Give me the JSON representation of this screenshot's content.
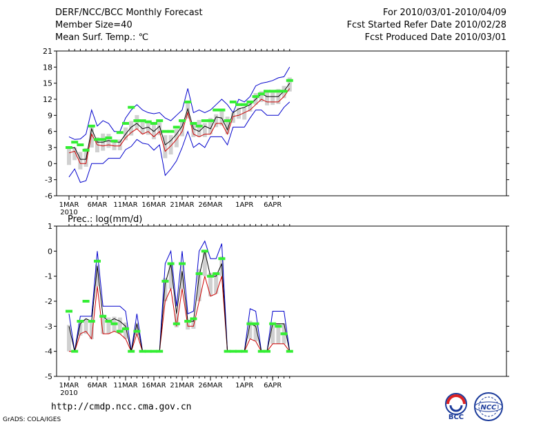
{
  "header": {
    "title": "DERF/NCC/BCC Monthly Forecast",
    "member": "Member Size=40",
    "variable1": "Mean Surf. Temp.: ℃",
    "period": "For 2010/03/01-2010/04/09",
    "started": "Fcst Started Refer Date 2010/02/28",
    "produced": "Fcst Produced Date 2010/03/01"
  },
  "footer": {
    "url": "http://cmdp.ncc.cma.gov.cn",
    "credit": "GrADS: COLA/IGES",
    "logo1": "BCC",
    "logo2": "NCC"
  },
  "colors": {
    "max": "#0000cc",
    "min": "#cc0000",
    "mean": "#000000",
    "box": "#d0d0d0",
    "obs": "#33ee33"
  },
  "chart_data": [
    {
      "type": "line",
      "title": "Mean Surf. Temp.: ℃",
      "xlabels": [
        "1MAR",
        "6MAR",
        "11MAR",
        "16MAR",
        "21MAR",
        "26MAR",
        "1APR",
        "6APR"
      ],
      "year_label": "2010",
      "ylim": [
        -6,
        21
      ],
      "yticks": [
        -6,
        -3,
        0,
        3,
        6,
        9,
        12,
        15,
        18,
        21
      ],
      "days": 40,
      "series": [
        {
          "name": "max",
          "values": [
            5,
            4.5,
            4.6,
            5.5,
            10,
            7,
            8,
            7.5,
            6,
            6,
            8.5,
            10,
            11,
            10,
            9.5,
            9.3,
            9.5,
            8.5,
            8,
            9,
            10,
            14,
            9.5,
            10,
            9.5,
            10,
            11,
            12,
            11,
            9.5,
            12,
            11.5,
            12.5,
            14.5,
            15,
            15.2,
            15.5,
            16,
            16.2,
            18
          ]
        },
        {
          "name": "mean",
          "values": [
            2.8,
            3,
            0.8,
            0.8,
            6.5,
            4,
            4,
            4.3,
            4,
            4,
            5.5,
            6.8,
            7.5,
            6.5,
            6.8,
            6,
            7,
            3.5,
            4.3,
            5.5,
            7,
            10.2,
            6.5,
            6,
            7,
            6.5,
            8.7,
            8.5,
            6.3,
            9.5,
            10.2,
            10.5,
            11,
            12,
            13,
            12.5,
            12.5,
            12.5,
            13.5,
            15
          ]
        },
        {
          "name": "min",
          "values": [
            2,
            2.3,
            0,
            0,
            5.5,
            3.5,
            3.3,
            3.5,
            3.3,
            3.3,
            4.8,
            5.8,
            6.5,
            5.5,
            6,
            5,
            6,
            2.3,
            3.3,
            4.5,
            6,
            9.5,
            5.5,
            5,
            5.5,
            5.5,
            7.5,
            7.5,
            5.5,
            8.8,
            9,
            9.5,
            10,
            11,
            12,
            11.5,
            11.5,
            11.5,
            12.5,
            14
          ]
        },
        {
          "name": "lower",
          "values": [
            -2.5,
            -1,
            -3.5,
            -3.2,
            0,
            0,
            0,
            1,
            1,
            1,
            2.6,
            3.2,
            4.5,
            3.8,
            3.6,
            2.5,
            3.5,
            -2.2,
            -1,
            0.5,
            3,
            6,
            3,
            3.8,
            3,
            5,
            5,
            5,
            3.5,
            6.8,
            6.8,
            6.8,
            8.5,
            10,
            10,
            9,
            9,
            9,
            10.5,
            11.5
          ]
        },
        {
          "name": "obs",
          "values": [
            3,
            4,
            3.5,
            2.5,
            7,
            4.5,
            4.5,
            4.8,
            4.2,
            5.8,
            7.5,
            10.5,
            8,
            8,
            7.8,
            7.5,
            8,
            6,
            6,
            6.8,
            8,
            11.5,
            7.5,
            7,
            8,
            8,
            10,
            10,
            8,
            11.5,
            11,
            11,
            11.5,
            12.5,
            13,
            13.5,
            13.5,
            13.5,
            13.5,
            15.5
          ]
        }
      ]
    },
    {
      "type": "line",
      "title": "Prec.: log(mm/d)",
      "xlabels": [
        "1MAR",
        "6MAR",
        "11MAR",
        "16MAR",
        "21MAR",
        "26MAR",
        "1APR",
        "6APR"
      ],
      "year_label": "2010",
      "ylim": [
        -5,
        1
      ],
      "yticks": [
        -5,
        -4,
        -3,
        -2,
        -1,
        0,
        1
      ],
      "days": 40,
      "series": [
        {
          "name": "max",
          "values": [
            -2.5,
            -4,
            -2.6,
            -2.6,
            -2.6,
            0,
            -2.2,
            -2.2,
            -2.2,
            -2.2,
            -2.4,
            -4,
            -2.5,
            -4,
            -4,
            -4,
            -4,
            -0.5,
            0,
            -2.2,
            0,
            -2.5,
            -2.4,
            0,
            0.4,
            -0.3,
            -0.3,
            0.3,
            -4,
            -4,
            -4,
            -4,
            -2.3,
            -2.4,
            -4,
            -4,
            -2.4,
            -2.4,
            -2.4,
            -4
          ]
        },
        {
          "name": "mean",
          "values": [
            -3,
            -4,
            -2.9,
            -2.7,
            -2.8,
            -0.6,
            -2.6,
            -2.8,
            -2.7,
            -2.8,
            -3,
            -4,
            -2.9,
            -4,
            -4,
            -4,
            -4,
            -1.3,
            -0.5,
            -2.5,
            -0.8,
            -2.8,
            -2.8,
            -1,
            0,
            -1,
            -1,
            -0.5,
            -4,
            -4,
            -4,
            -4,
            -2.9,
            -3,
            -4,
            -4,
            -2.9,
            -2.9,
            -2.9,
            -4
          ]
        },
        {
          "name": "min",
          "values": [
            -4,
            -4,
            -3.3,
            -3.2,
            -3.5,
            -1.4,
            -3.3,
            -3.3,
            -3.2,
            -3.3,
            -3.5,
            -4,
            -3.3,
            -4,
            -4,
            -4,
            -4,
            -2,
            -1.5,
            -3,
            -1.5,
            -3,
            -3,
            -2,
            -1,
            -1.8,
            -1.7,
            -1,
            -4,
            -4,
            -4,
            -4,
            -3.5,
            -3.6,
            -4,
            -4,
            -3.7,
            -3.7,
            -3.7,
            -4
          ]
        },
        {
          "name": "obs",
          "values": [
            -2.4,
            -4,
            -2.8,
            -2,
            -2.8,
            -0.4,
            -2.6,
            -2.8,
            -2.9,
            -3.2,
            -3.1,
            -4,
            -3.2,
            -4,
            -4,
            -4,
            -4,
            -1.2,
            -0.5,
            -2.9,
            -0.5,
            -2.8,
            -2.7,
            -0.9,
            0,
            -1,
            -0.9,
            -0.3,
            -4,
            -4,
            -4,
            -4,
            -2.9,
            -2.9,
            -4,
            -4,
            -2.9,
            -3.0,
            -3.3,
            -4
          ]
        }
      ]
    }
  ]
}
